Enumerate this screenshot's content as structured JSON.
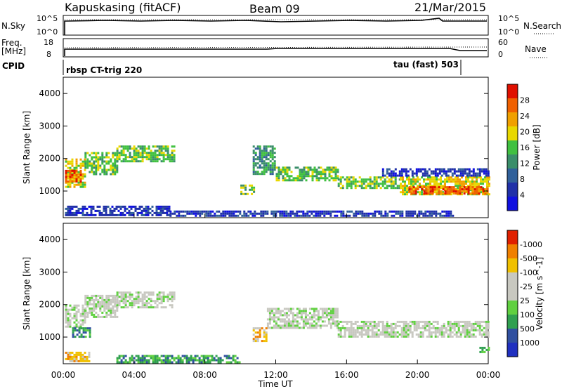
{
  "header": {
    "station": "Kapuskasing (fitACF)",
    "beam": "Beam 09",
    "date": "21/Mar/2015"
  },
  "top_panels": {
    "nsky_label": "N.Sky",
    "nsky_ticks": [
      "10^5",
      "10^0"
    ],
    "nsearch_label": "N.Search",
    "nsearch_ticks": [
      "10^5",
      "10^0"
    ],
    "freq_label": "Freq.",
    "freq_unit": "[MHz]",
    "freq_ticks": [
      "18",
      "8"
    ],
    "nave_label": "Nave",
    "nave_ticks": [
      "60",
      "0"
    ],
    "cpid_label": "CPID",
    "cpid_programs": [
      {
        "name": "rbsp CT-trig 220",
        "start": 0,
        "end": 22.3
      },
      {
        "name": "tau (fast) 503",
        "start": 22.3,
        "end": 24
      }
    ]
  },
  "chart_data": [
    {
      "type": "heatmap",
      "panel": "power",
      "xlabel": "",
      "ylabel": "Slant Range [km]",
      "xlim": [
        0,
        24
      ],
      "ylim": [
        180,
        4500
      ],
      "y_ticks": [
        1000,
        2000,
        3000,
        4000
      ],
      "colorbar": {
        "label": "Power [dB]",
        "ticks": [
          "4",
          "8",
          "12",
          "16",
          "20",
          "24",
          "28"
        ],
        "colors": [
          "#1010e0",
          "#2030a8",
          "#30609a",
          "#3a8e6a",
          "#40c040",
          "#e8d800",
          "#f0a000",
          "#f06000",
          "#e01000"
        ]
      },
      "regions": [
        {
          "t0": 0.1,
          "t1": 1.2,
          "r0": 1100,
          "r1": 2000,
          "level": 5
        },
        {
          "t0": 1.2,
          "t1": 3.0,
          "r0": 1500,
          "r1": 2200,
          "level": 4
        },
        {
          "t0": 3.0,
          "t1": 6.3,
          "r0": 1900,
          "r1": 2400,
          "level": 4
        },
        {
          "t0": 0.1,
          "t1": 1.0,
          "r0": 1300,
          "r1": 1650,
          "level": 7
        },
        {
          "t0": 10.7,
          "t1": 12.0,
          "r0": 1500,
          "r1": 2400,
          "level": 3
        },
        {
          "t0": 12.0,
          "t1": 15.5,
          "r0": 1300,
          "r1": 1750,
          "level": 4
        },
        {
          "t0": 15.5,
          "t1": 19.0,
          "r0": 1100,
          "r1": 1450,
          "level": 4
        },
        {
          "t0": 19.0,
          "t1": 24.0,
          "r0": 900,
          "r1": 1450,
          "level": 5
        },
        {
          "t0": 19.5,
          "t1": 24.0,
          "r0": 950,
          "r1": 1150,
          "level": 7
        },
        {
          "t0": 18.0,
          "t1": 24.0,
          "r0": 1450,
          "r1": 1700,
          "level": 1
        },
        {
          "t0": 10.0,
          "t1": 10.8,
          "r0": 900,
          "r1": 1200,
          "level": 4
        },
        {
          "t0": 0.1,
          "t1": 6.0,
          "r0": 250,
          "r1": 550,
          "level": 1
        },
        {
          "t0": 6.0,
          "t1": 22.0,
          "r0": 250,
          "r1": 400,
          "level": 1
        }
      ]
    },
    {
      "type": "heatmap",
      "panel": "velocity",
      "xlabel": "Time UT",
      "ylabel": "Slant Range [km]",
      "xlim": [
        0,
        24
      ],
      "ylim": [
        180,
        4500
      ],
      "x_tick_labels": [
        "00:00",
        "04:00",
        "08:00",
        "12:00",
        "16:00",
        "20:00",
        "00:00"
      ],
      "y_ticks": [
        1000,
        2000,
        3000,
        4000
      ],
      "colorbar": {
        "label": "Velocity [m s^-1]",
        "ticks": [
          "1000",
          "500",
          "100",
          "25",
          "-25",
          "-100",
          "-500",
          "-1000"
        ],
        "colors": [
          "#2030c0",
          "#3050a0",
          "#30a050",
          "#60d040",
          "#c8c8c0",
          "#c8c8c0",
          "#f0c000",
          "#f08000",
          "#e02000"
        ]
      },
      "regions": [
        {
          "t0": 0.1,
          "t1": 1.2,
          "r0": 1300,
          "r1": 2000,
          "level": 4
        },
        {
          "t0": 1.2,
          "t1": 3.0,
          "r0": 1600,
          "r1": 2300,
          "level": 4
        },
        {
          "t0": 3.0,
          "t1": 6.3,
          "r0": 1900,
          "r1": 2400,
          "level": 4
        },
        {
          "t0": 11.5,
          "t1": 15.5,
          "r0": 1300,
          "r1": 1900,
          "level": 4
        },
        {
          "t0": 15.5,
          "t1": 24.0,
          "r0": 1000,
          "r1": 1500,
          "level": 4
        },
        {
          "t0": 10.7,
          "t1": 11.5,
          "r0": 900,
          "r1": 1300,
          "level": 6
        },
        {
          "t0": 0.5,
          "t1": 1.5,
          "r0": 1000,
          "r1": 1300,
          "level": 2
        },
        {
          "t0": 0.1,
          "t1": 1.5,
          "r0": 250,
          "r1": 550,
          "level": 6
        },
        {
          "t0": 3.0,
          "t1": 10.0,
          "r0": 250,
          "r1": 450,
          "level": 2
        },
        {
          "t0": 23.5,
          "t1": 24.0,
          "r0": 550,
          "r1": 700,
          "level": 3
        }
      ]
    }
  ]
}
